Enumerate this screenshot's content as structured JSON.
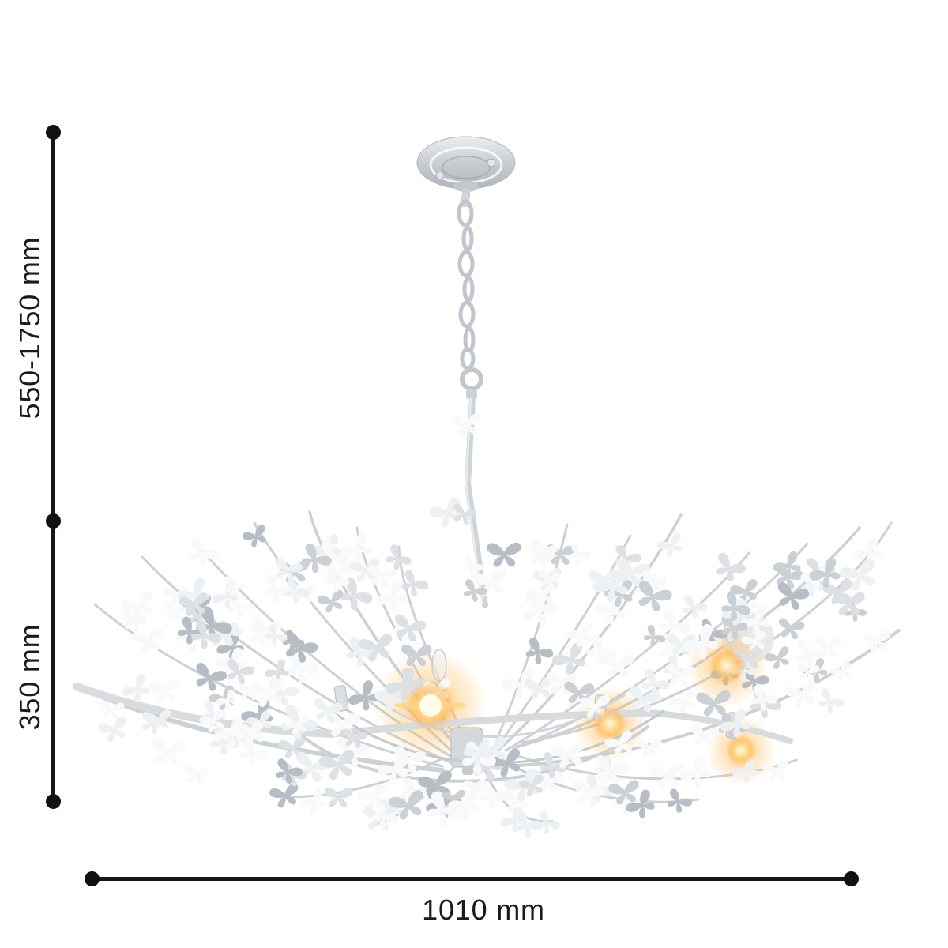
{
  "diagram": {
    "background": "#ffffff",
    "line_color": "#161618",
    "labels": {
      "suspension_height": "550-1750 mm",
      "body_height": "350 mm",
      "width": "1010 mm"
    }
  },
  "illustration": {
    "alt": "White metal chandelier made of curved branches covered in butterfly cut-outs, hanging from a chain with a dome ceiling canopy; several candle bulbs glow warm yellow inside the bowl-shaped body",
    "colors": {
      "metal_light": "#eef0f2",
      "metal_mid": "#ced3d7",
      "metal_dark": "#aeb4ba",
      "branch": "#ccd1d5",
      "glow": "#ffb347",
      "butterfly_palette": [
        "#f7f9fa",
        "#eef1f3",
        "#dde1e5",
        "#cbd0d5",
        "#b7bdc4"
      ]
    }
  }
}
